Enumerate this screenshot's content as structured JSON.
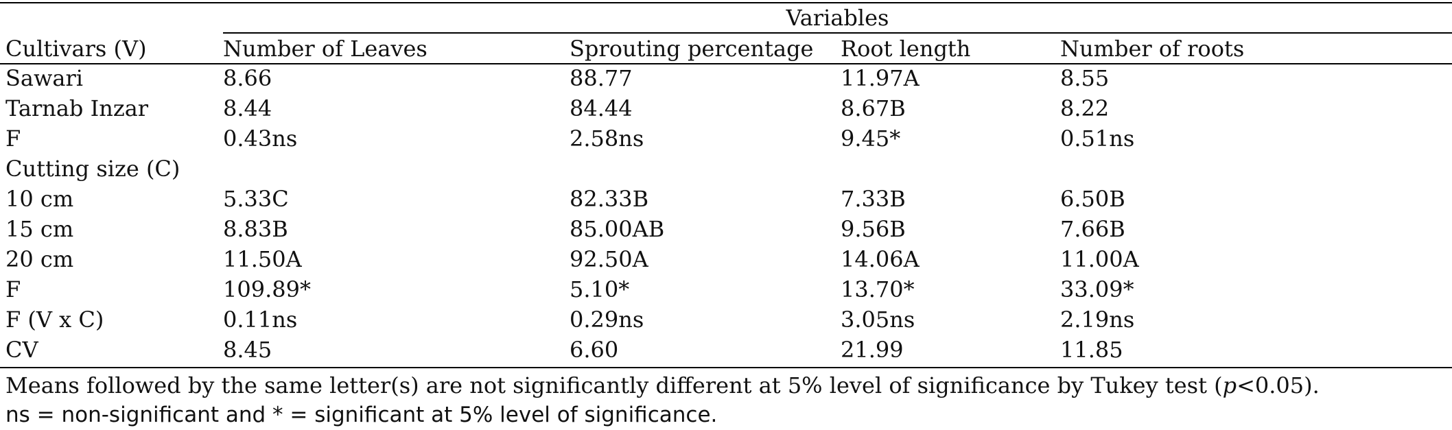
{
  "header": {
    "group_title": "Variables",
    "columns": [
      "Cultivars (V)",
      "Number of Leaves",
      "Sprouting percentage",
      "Root length",
      "Number of roots"
    ]
  },
  "rows": [
    [
      "Sawari",
      "8.66",
      "88.77",
      "11.97A",
      "8.55"
    ],
    [
      "Tarnab Inzar",
      "8.44",
      "84.44",
      "8.67B",
      "8.22"
    ],
    [
      "F",
      "0.43ns",
      "2.58ns",
      "9.45*",
      "0.51ns"
    ],
    [
      "Cutting size (C)",
      "",
      "",
      "",
      ""
    ],
    [
      "10 cm",
      "5.33C",
      "82.33B",
      "7.33B",
      "6.50B"
    ],
    [
      "15 cm",
      "8.83B",
      "85.00AB",
      "9.56B",
      "7.66B"
    ],
    [
      "20 cm",
      "11.50A",
      "92.50A",
      "14.06A",
      "11.00A"
    ],
    [
      "F",
      "109.89*",
      "5.10*",
      "13.70*",
      "33.09*"
    ],
    [
      "F (V x C)",
      "0.11ns",
      "0.29ns",
      "3.05ns",
      "2.19ns"
    ],
    [
      "CV",
      "8.45",
      "6.60",
      "21.99",
      "11.85"
    ]
  ],
  "footnotes": {
    "line1_before": "Means followed by the same letter(s) are not significantly different at 5% level of significance by Tukey test (",
    "line1_italic": "p",
    "line1_after": "<0.05).",
    "line2": "ns = non-significant and * = significant at 5% level of significance."
  }
}
